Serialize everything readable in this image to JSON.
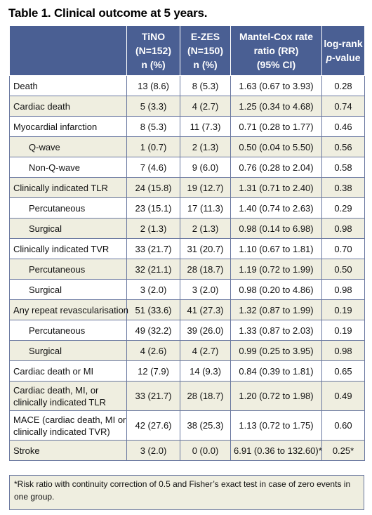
{
  "title": "Table 1. Clinical outcome at 5 years.",
  "header": {
    "col0": "",
    "col1": [
      "TiNO",
      "(N=152)",
      "n (%)"
    ],
    "col2": [
      "E-ZES",
      "(N=150)",
      "n (%)"
    ],
    "col3": [
      "Mantel-Cox rate",
      "ratio (RR)",
      "(95% CI)"
    ],
    "col4_line1": "log-rank",
    "col4_italic": "p",
    "col4_rest": "-value"
  },
  "rows": [
    {
      "label": [
        "Death"
      ],
      "indent": false,
      "tino": "13 (8.6)",
      "ezes": "8 (5.3)",
      "rr": "1.63 (0.67 to 3.93)",
      "p": "0.28"
    },
    {
      "label": [
        "Cardiac death"
      ],
      "indent": false,
      "tino": "5 (3.3)",
      "ezes": "4 (2.7)",
      "rr": "1.25 (0.34 to 4.68)",
      "p": "0.74"
    },
    {
      "label": [
        "Myocardial infarction"
      ],
      "indent": false,
      "tino": "8 (5.3)",
      "ezes": "11 (7.3)",
      "rr": "0.71 (0.28 to 1.77)",
      "p": "0.46"
    },
    {
      "label": [
        "Q-wave"
      ],
      "indent": true,
      "tino": "1 (0.7)",
      "ezes": "2 (1.3)",
      "rr": "0.50 (0.04 to 5.50)",
      "p": "0.56"
    },
    {
      "label": [
        "Non-Q-wave"
      ],
      "indent": true,
      "tino": "7 (4.6)",
      "ezes": "9 (6.0)",
      "rr": "0.76 (0.28 to 2.04)",
      "p": "0.58"
    },
    {
      "label": [
        "Clinically indicated TLR"
      ],
      "indent": false,
      "tino": "24 (15.8)",
      "ezes": "19 (12.7)",
      "rr": "1.31 (0.71 to 2.40)",
      "p": "0.38"
    },
    {
      "label": [
        "Percutaneous"
      ],
      "indent": true,
      "tino": "23 (15.1)",
      "ezes": "17 (11.3)",
      "rr": "1.40 (0.74 to 2.63)",
      "p": "0.29"
    },
    {
      "label": [
        "Surgical"
      ],
      "indent": true,
      "tino": "2 (1.3)",
      "ezes": "2 (1.3)",
      "rr": "0.98 (0.14 to 6.98)",
      "p": "0.98"
    },
    {
      "label": [
        "Clinically indicated TVR"
      ],
      "indent": false,
      "tino": "33 (21.7)",
      "ezes": "31 (20.7)",
      "rr": "1.10 (0.67 to 1.81)",
      "p": "0.70"
    },
    {
      "label": [
        "Percutaneous"
      ],
      "indent": true,
      "tino": "32 (21.1)",
      "ezes": "28 (18.7)",
      "rr": "1.19 (0.72 to 1.99)",
      "p": "0.50"
    },
    {
      "label": [
        "Surgical"
      ],
      "indent": true,
      "tino": "3 (2.0)",
      "ezes": "3 (2.0)",
      "rr": "0.98 (0.20 to 4.86)",
      "p": "0.98"
    },
    {
      "label": [
        "Any repeat revascularisation"
      ],
      "indent": false,
      "tino": "51 (33.6)",
      "ezes": "41 (27.3)",
      "rr": "1.32 (0.87 to 1.99)",
      "p": "0.19"
    },
    {
      "label": [
        "Percutaneous"
      ],
      "indent": true,
      "tino": "49 (32.2)",
      "ezes": "39 (26.0)",
      "rr": "1.33 (0.87 to 2.03)",
      "p": "0.19"
    },
    {
      "label": [
        "Surgical"
      ],
      "indent": true,
      "tino": "4 (2.6)",
      "ezes": "4 (2.7)",
      "rr": "0.99 (0.25 to 3.95)",
      "p": "0.98"
    },
    {
      "label": [
        "Cardiac death or MI"
      ],
      "indent": false,
      "tino": "12 (7.9)",
      "ezes": "14 (9.3)",
      "rr": "0.84 (0.39 to 1.81)",
      "p": "0.65"
    },
    {
      "label": [
        "Cardiac death, MI, or",
        "clinically indicated TLR"
      ],
      "indent": false,
      "tino": "33 (21.7)",
      "ezes": "28 (18.7)",
      "rr": "1.20 (0.72 to 1.98)",
      "p": "0.49"
    },
    {
      "label": [
        "MACE (cardiac death, MI or",
        "clinically indicated TVR)"
      ],
      "indent": false,
      "tino": "42 (27.6)",
      "ezes": "38 (25.3)",
      "rr": "1.13 (0.72 to 1.75)",
      "p": "0.60"
    },
    {
      "label": [
        "Stroke"
      ],
      "indent": false,
      "tino": "3 (2.0)",
      "ezes": "0 (0.0)",
      "rr": "6.91 (0.36 to 132.60)*",
      "p": "0.25*"
    }
  ],
  "footnote": [
    "*Risk ratio with continuity correction of 0.5 and Fisher’s exact test in case of zero events in",
    "one group."
  ]
}
